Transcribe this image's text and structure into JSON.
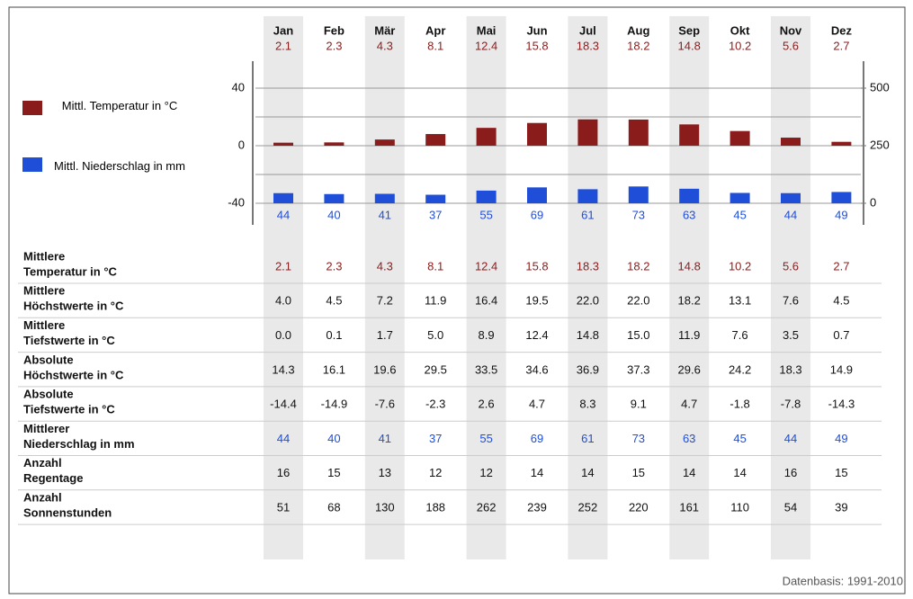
{
  "chart_data": {
    "type": "bar",
    "categories": [
      "Jan",
      "Feb",
      "Mär",
      "Apr",
      "Mai",
      "Jun",
      "Jul",
      "Aug",
      "Sep",
      "Okt",
      "Nov",
      "Dez"
    ],
    "series": [
      {
        "name": "Mittl. Temperatur in °C",
        "color": "#8b1c1c",
        "values": [
          2.1,
          2.3,
          4.3,
          8.1,
          12.4,
          15.8,
          18.3,
          18.2,
          14.8,
          10.2,
          5.6,
          2.7
        ]
      },
      {
        "name": "Mittl. Niederschlag in mm",
        "color": "#1f4fd8",
        "axis": "y2",
        "values": [
          44,
          40,
          41,
          37,
          55,
          69,
          61,
          73,
          63,
          45,
          44,
          49
        ]
      }
    ],
    "ylim": [
      -40,
      40
    ],
    "yticks": [
      -40,
      0,
      40
    ],
    "minor_yticks": [
      -20,
      20
    ],
    "y2lim": [
      0,
      500
    ],
    "y2ticks": [
      0,
      250,
      500
    ],
    "grid": true
  },
  "table": {
    "rows": [
      {
        "label": [
          "Mittlere",
          "Temperatur in °C"
        ],
        "color": "#8b1c1c",
        "values": [
          "2.1",
          "2.3",
          "4.3",
          "8.1",
          "12.4",
          "15.8",
          "18.3",
          "18.2",
          "14.8",
          "10.2",
          "5.6",
          "2.7"
        ]
      },
      {
        "label": [
          "Mittlere",
          "Höchstwerte in °C"
        ],
        "values": [
          "4.0",
          "4.5",
          "7.2",
          "11.9",
          "16.4",
          "19.5",
          "22.0",
          "22.0",
          "18.2",
          "13.1",
          "7.6",
          "4.5"
        ]
      },
      {
        "label": [
          "Mittlere",
          "Tiefstwerte in °C"
        ],
        "values": [
          "0.0",
          "0.1",
          "1.7",
          "5.0",
          "8.9",
          "12.4",
          "14.8",
          "15.0",
          "11.9",
          "7.6",
          "3.5",
          "0.7"
        ]
      },
      {
        "label": [
          "Absolute",
          "Höchstwerte in °C"
        ],
        "values": [
          "14.3",
          "16.1",
          "19.6",
          "29.5",
          "33.5",
          "34.6",
          "36.9",
          "37.3",
          "29.6",
          "24.2",
          "18.3",
          "14.9"
        ]
      },
      {
        "label": [
          "Absolute",
          "Tiefstwerte in °C"
        ],
        "values": [
          "-14.4",
          "-14.9",
          "-7.6",
          "-2.3",
          "2.6",
          "4.7",
          "8.3",
          "9.1",
          "4.7",
          "-1.8",
          "-7.8",
          "-14.3"
        ]
      },
      {
        "label": [
          "Mittlerer",
          "Niederschlag in mm"
        ],
        "color": "#1f4fd8",
        "values": [
          "44",
          "40",
          "41",
          "37",
          "55",
          "69",
          "61",
          "73",
          "63",
          "45",
          "44",
          "49"
        ]
      },
      {
        "label": [
          "Anzahl",
          "Regentage"
        ],
        "values": [
          "16",
          "15",
          "13",
          "12",
          "12",
          "14",
          "14",
          "15",
          "14",
          "14",
          "16",
          "15"
        ]
      },
      {
        "label": [
          "Anzahl",
          "Sonnenstunden"
        ],
        "values": [
          "51",
          "68",
          "130",
          "188",
          "262",
          "239",
          "252",
          "220",
          "161",
          "110",
          "54",
          "39"
        ]
      }
    ]
  },
  "footer": "Datenbasis: 1991-2010"
}
